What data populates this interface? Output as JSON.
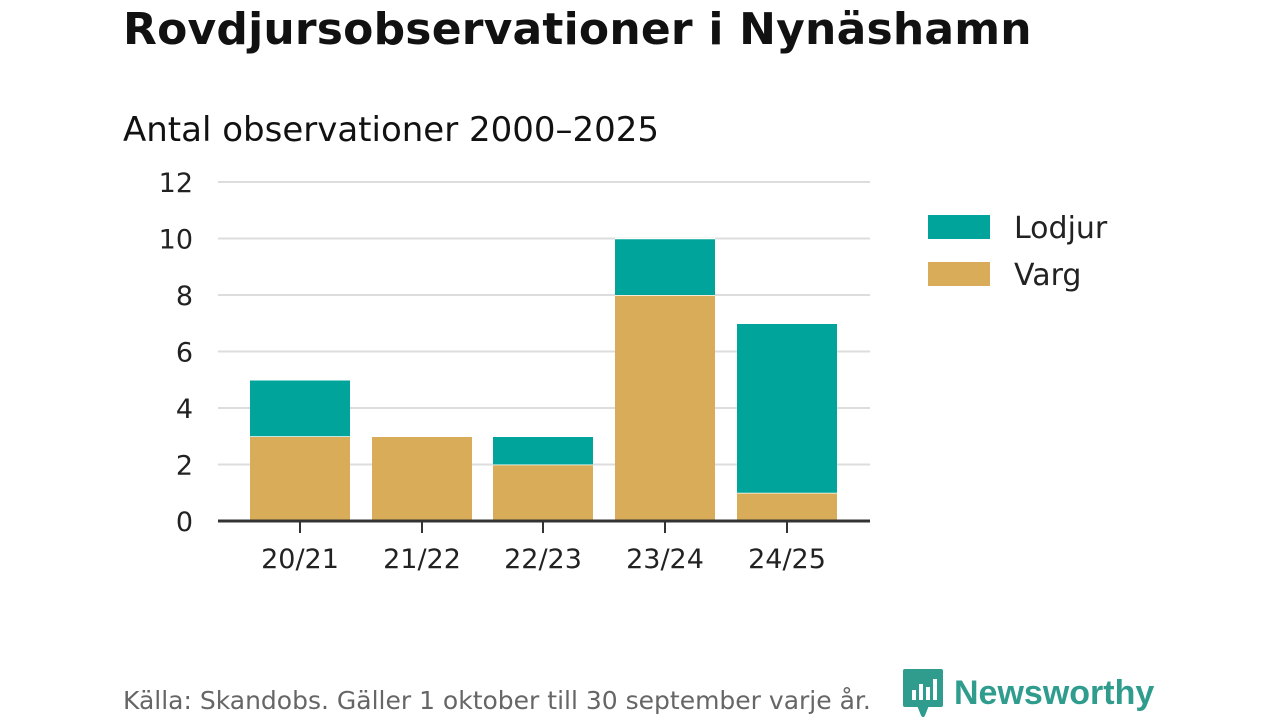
{
  "title": "Rovdjursobservationer i Nynäshamn",
  "subtitle": "Antal observationer 2000–2025",
  "source": "Källa: Skandobs. Gäller 1 oktober till 30 september varje år.",
  "brand": {
    "name": "Newsworthy",
    "icon": "newsworthy-bar-chart-icon",
    "color": "#2f9c8e"
  },
  "chart_data": {
    "type": "bar",
    "stacked": true,
    "categories": [
      "20/21",
      "21/22",
      "22/23",
      "23/24",
      "24/25"
    ],
    "series": [
      {
        "name": "Varg",
        "color": "#d8ac59",
        "values": [
          3,
          3,
          2,
          8,
          1
        ]
      },
      {
        "name": "Lodjur",
        "color": "#00a49a",
        "values": [
          2,
          0,
          1,
          2,
          6
        ]
      }
    ],
    "legend": [
      "Lodjur",
      "Varg"
    ],
    "legend_position": "right",
    "ylim": [
      0,
      12
    ],
    "yticks": [
      "0",
      "2",
      "4",
      "6",
      "8",
      "10",
      "12"
    ],
    "grid": true,
    "xlabel": "",
    "ylabel": ""
  }
}
